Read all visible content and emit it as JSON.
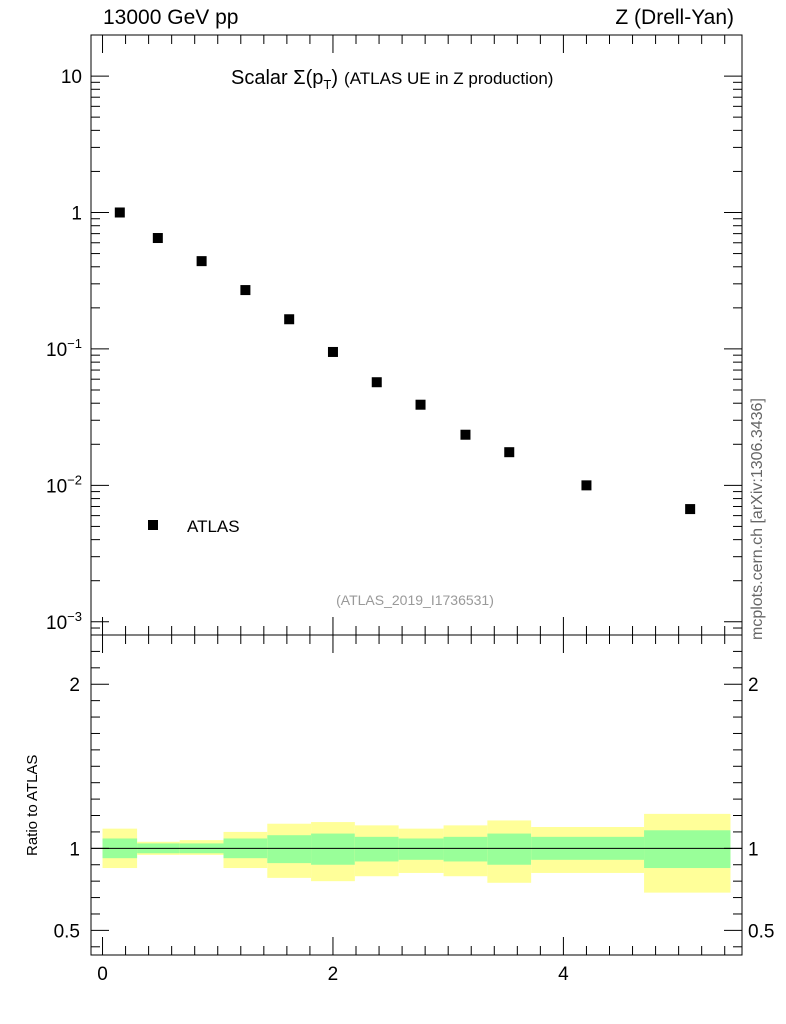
{
  "header": {
    "energy_label": "13000 GeV pp",
    "process_label": "Z (Drell-Yan)"
  },
  "watermark": "mcplots.cern.ch [arXiv:1306.3436]",
  "chart_data": [
    {
      "type": "scatter",
      "panel": "main",
      "title_prefix": "Scalar ",
      "title_sigma": "Σ(p",
      "title_sub": "T",
      "title_close": ")",
      "title_suffix": "(ATLAS UE in Z production)",
      "analysis_label": "(ATLAS_2019_I1736531)",
      "y_scale": "log",
      "ylim": [
        0.0008,
        20
      ],
      "xlim": [
        -0.1,
        5.55
      ],
      "y_ticks": [
        {
          "value": 10,
          "label": "10"
        },
        {
          "value": 1,
          "label": "1"
        },
        {
          "value": 0.1,
          "base": "10",
          "exp": "−1"
        },
        {
          "value": 0.01,
          "base": "10",
          "exp": "−2"
        },
        {
          "value": 0.001,
          "base": "10",
          "exp": "−3"
        }
      ],
      "legend": {
        "label": "ATLAS",
        "position": "bottom-left"
      },
      "series": [
        {
          "name": "ATLAS",
          "color": "#000000",
          "marker": "square",
          "x": [
            0.15,
            0.48,
            0.86,
            1.24,
            1.62,
            2.0,
            2.38,
            2.76,
            3.15,
            3.53,
            4.2,
            5.1
          ],
          "y": [
            1.0,
            0.65,
            0.44,
            0.27,
            0.165,
            0.095,
            0.057,
            0.039,
            0.0235,
            0.0175,
            0.01,
            0.0067
          ]
        }
      ]
    },
    {
      "type": "area",
      "panel": "ratio",
      "ylabel": "Ratio to ATLAS",
      "ylim": [
        0.35,
        2.3
      ],
      "y_ticks": [
        {
          "value": 2,
          "label": "2"
        },
        {
          "value": 1,
          "label": "1"
        },
        {
          "value": 0.5,
          "label": "0.5"
        }
      ],
      "xlim": [
        -0.1,
        5.55
      ],
      "x_ticks": [
        {
          "value": 0,
          "label": "0"
        },
        {
          "value": 2,
          "label": "2"
        },
        {
          "value": 4,
          "label": "4"
        }
      ],
      "reference_line": 1,
      "bands": {
        "edges": [
          0.0,
          0.3,
          0.67,
          1.05,
          1.43,
          1.81,
          2.19,
          2.57,
          2.96,
          3.34,
          3.72,
          4.7,
          5.45
        ],
        "outer_color": "#ffff99",
        "inner_color": "#99ff99",
        "outer_lo": [
          0.88,
          0.96,
          0.96,
          0.88,
          0.82,
          0.8,
          0.83,
          0.85,
          0.83,
          0.79,
          0.85,
          0.73
        ],
        "outer_hi": [
          1.12,
          1.04,
          1.05,
          1.1,
          1.15,
          1.16,
          1.14,
          1.12,
          1.14,
          1.17,
          1.13,
          1.21
        ],
        "inner_lo": [
          0.94,
          0.97,
          0.97,
          0.94,
          0.91,
          0.9,
          0.92,
          0.93,
          0.92,
          0.9,
          0.93,
          0.88
        ],
        "inner_hi": [
          1.06,
          1.03,
          1.03,
          1.06,
          1.08,
          1.09,
          1.07,
          1.06,
          1.07,
          1.09,
          1.07,
          1.11
        ]
      }
    }
  ]
}
